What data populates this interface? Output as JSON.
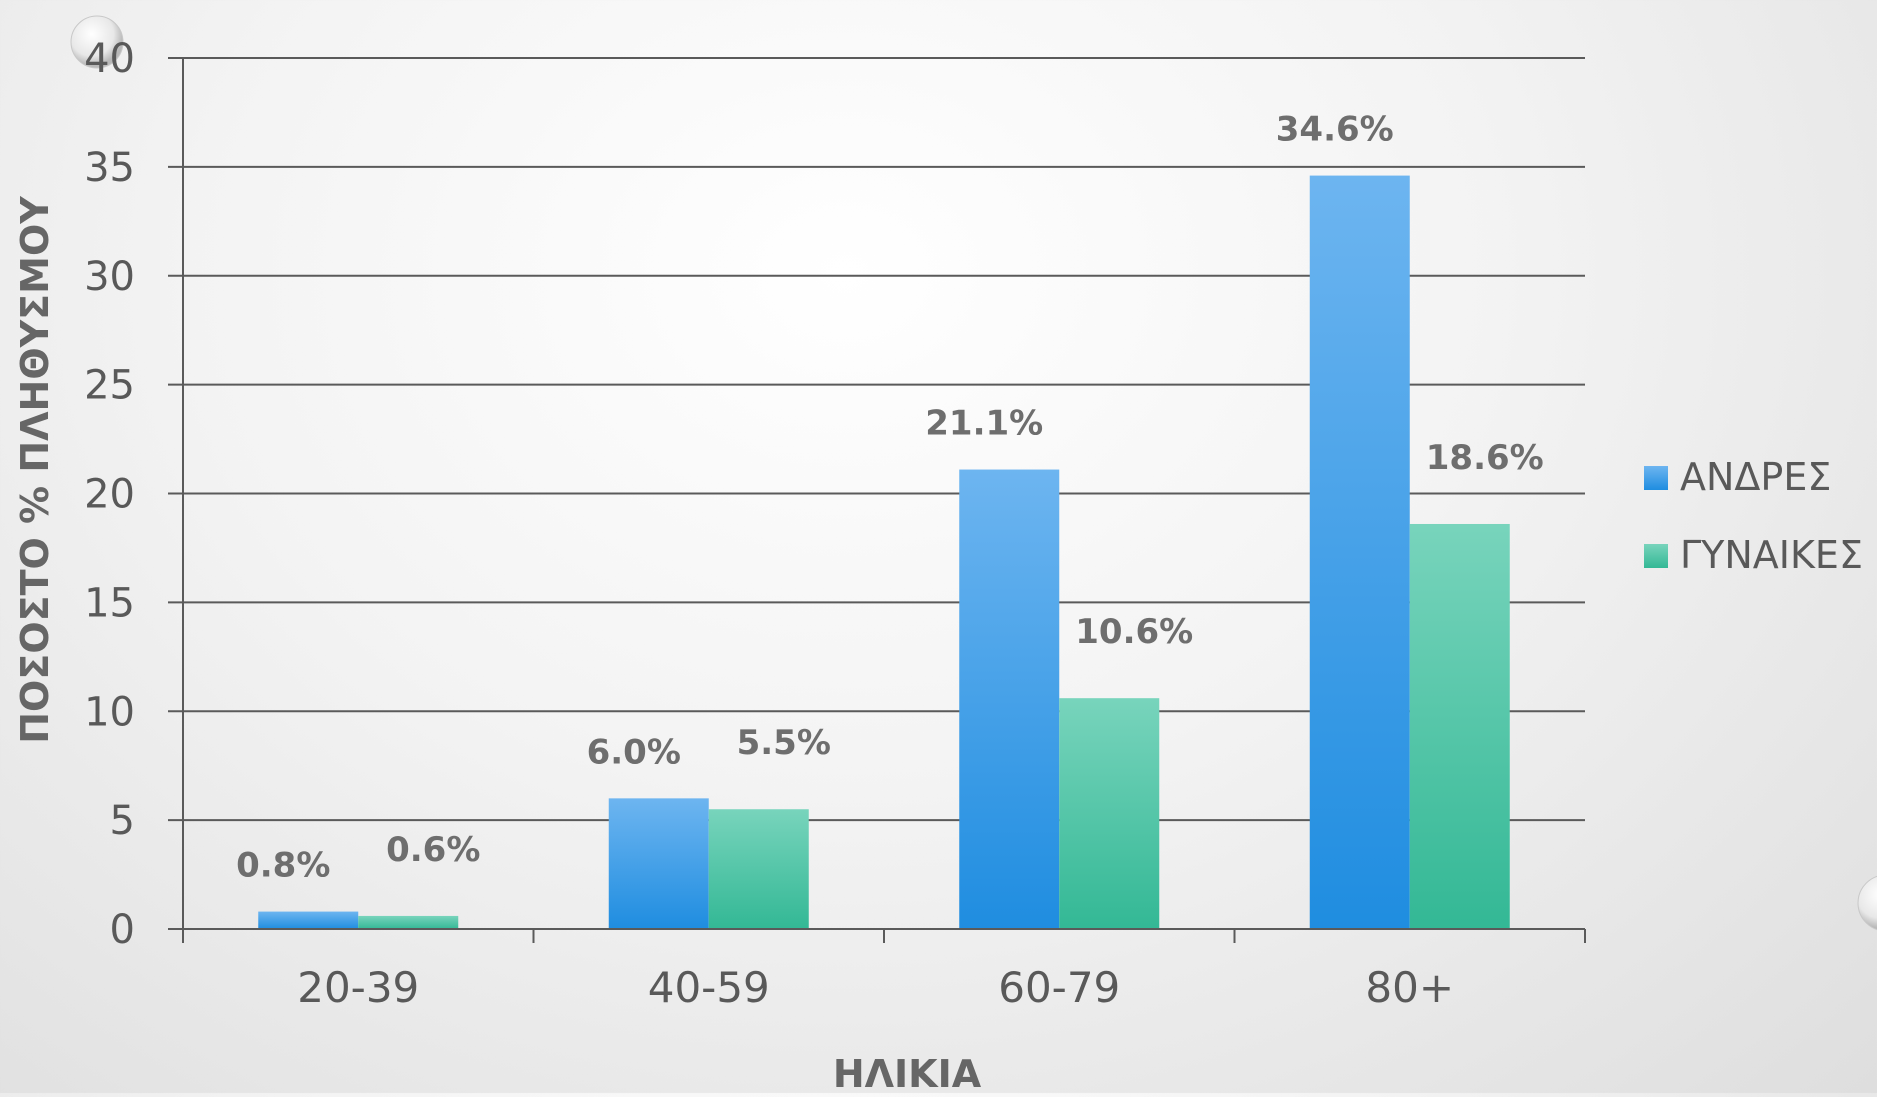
{
  "chart_data": {
    "type": "bar",
    "title": "",
    "xlabel": "ΗΛΙΚΙΑ",
    "ylabel": "ΠΟΣΟΣΤΟ % ΠΛΗΘΥΣΜΟΥ",
    "ylim": [
      0,
      40
    ],
    "yticks": [
      0,
      5,
      10,
      15,
      20,
      25,
      30,
      35,
      40
    ],
    "grid": true,
    "legend": "right",
    "categories": [
      "20-39",
      "40-59",
      "60-79",
      "80+"
    ],
    "series": [
      {
        "name": "ΑΝΔΡΕΣ",
        "values": [
          0.8,
          6.0,
          21.1,
          34.6
        ],
        "labels": [
          "0.8%",
          "6.0%",
          "21.1%",
          "34.6%"
        ],
        "color": "#3a9ee8"
      },
      {
        "name": "ΓΥΝΑΙΚΕΣ",
        "values": [
          0.6,
          5.5,
          10.6,
          18.6
        ],
        "labels": [
          "0.6%",
          "5.5%",
          "10.6%",
          "18.6%"
        ],
        "color": "#4cc9a8"
      }
    ]
  }
}
